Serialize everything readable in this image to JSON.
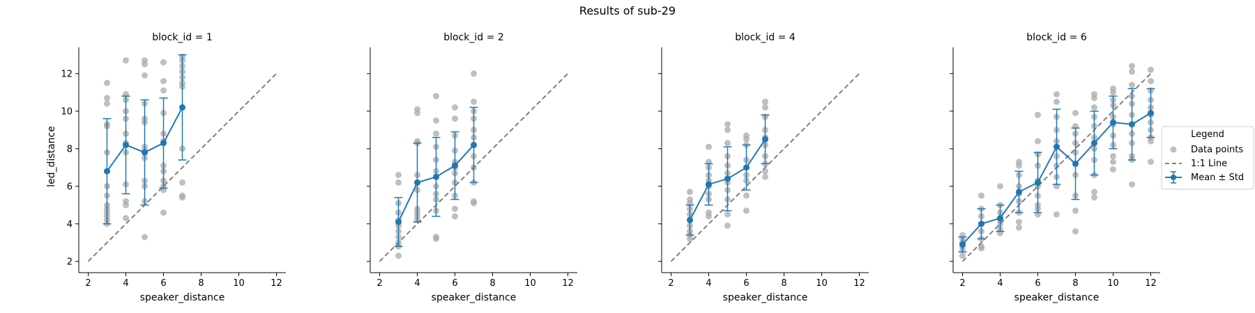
{
  "figure": {
    "title": "Results of sub-29",
    "xlabel": "speaker_distance",
    "ylabel": "led_distance"
  },
  "colors": {
    "points": "#aaaaaa",
    "mean": "#1f77b4",
    "identity": "#7f7f7f"
  },
  "legend": {
    "title": "Legend",
    "items": [
      "Data points",
      "1:1 Line",
      "Mean ± Std"
    ]
  },
  "chart_data": [
    {
      "type": "scatter",
      "title": "block_id = 1",
      "xlabel": "speaker_distance",
      "ylabel": "led_distance",
      "xlim": [
        1.5,
        12.5
      ],
      "ylim": [
        1.4,
        13.4
      ],
      "xticks": [
        2,
        4,
        6,
        8,
        10,
        12
      ],
      "yticks": [
        2,
        4,
        6,
        8,
        10,
        12
      ],
      "identity_line": [
        [
          2,
          2
        ],
        [
          12,
          12
        ]
      ],
      "mean_std": [
        {
          "x": 3,
          "mean": 6.8,
          "std": 2.8
        },
        {
          "x": 4,
          "mean": 8.2,
          "std": 2.6
        },
        {
          "x": 5,
          "mean": 7.8,
          "std": 2.8
        },
        {
          "x": 6,
          "mean": 8.3,
          "std": 2.4
        },
        {
          "x": 7,
          "mean": 10.2,
          "std": 2.8
        }
      ],
      "points": [
        [
          3,
          11.5
        ],
        [
          3,
          10.7
        ],
        [
          3,
          10.4
        ],
        [
          3,
          9.3
        ],
        [
          3,
          9.2
        ],
        [
          3,
          7.8
        ],
        [
          3,
          6.8
        ],
        [
          3,
          6.0
        ],
        [
          3,
          5.5
        ],
        [
          3,
          5.0
        ],
        [
          3,
          4.8
        ],
        [
          3,
          4.6
        ],
        [
          3,
          4.4
        ],
        [
          3,
          4.2
        ],
        [
          3,
          4.0
        ],
        [
          4,
          12.7
        ],
        [
          4,
          10.9
        ],
        [
          4,
          10.6
        ],
        [
          4,
          10.0
        ],
        [
          4,
          9.6
        ],
        [
          4,
          8.8
        ],
        [
          4,
          8.3
        ],
        [
          4,
          7.8
        ],
        [
          4,
          6.1
        ],
        [
          4,
          5.2
        ],
        [
          4,
          5.0
        ],
        [
          4,
          4.3
        ],
        [
          5,
          12.7
        ],
        [
          5,
          12.5
        ],
        [
          5,
          11.9
        ],
        [
          5,
          10.4
        ],
        [
          5,
          9.6
        ],
        [
          5,
          9.4
        ],
        [
          5,
          8.1
        ],
        [
          5,
          7.9
        ],
        [
          5,
          7.5
        ],
        [
          5,
          6.3
        ],
        [
          5,
          6.0
        ],
        [
          5,
          5.2
        ],
        [
          5,
          3.3
        ],
        [
          6,
          12.6
        ],
        [
          6,
          11.6
        ],
        [
          6,
          11.1
        ],
        [
          6,
          9.9
        ],
        [
          6,
          8.8
        ],
        [
          6,
          8.4
        ],
        [
          6,
          7.1
        ],
        [
          6,
          6.8
        ],
        [
          6,
          6.3
        ],
        [
          6,
          6.0
        ],
        [
          6,
          5.8
        ],
        [
          6,
          4.6
        ],
        [
          7,
          12.9
        ],
        [
          7,
          12.7
        ],
        [
          7,
          12.4
        ],
        [
          7,
          12.1
        ],
        [
          7,
          11.8
        ],
        [
          7,
          11.5
        ],
        [
          7,
          11.3
        ],
        [
          7,
          8.0
        ],
        [
          7,
          6.2
        ],
        [
          7,
          5.5
        ],
        [
          7,
          5.4
        ]
      ]
    },
    {
      "type": "scatter",
      "title": "block_id = 2",
      "xlabel": "speaker_distance",
      "ylabel": "",
      "xlim": [
        1.5,
        12.5
      ],
      "ylim": [
        1.4,
        13.4
      ],
      "xticks": [
        2,
        4,
        6,
        8,
        10,
        12
      ],
      "yticks": [
        2,
        4,
        6,
        8,
        10,
        12
      ],
      "identity_line": [
        [
          2,
          2
        ],
        [
          12,
          12
        ]
      ],
      "mean_std": [
        {
          "x": 3,
          "mean": 4.1,
          "std": 1.3
        },
        {
          "x": 4,
          "mean": 6.2,
          "std": 2.1
        },
        {
          "x": 5,
          "mean": 6.5,
          "std": 2.1
        },
        {
          "x": 6,
          "mean": 7.1,
          "std": 1.8
        },
        {
          "x": 7,
          "mean": 8.2,
          "std": 2.0
        }
      ],
      "points": [
        [
          3,
          6.6
        ],
        [
          3,
          6.2
        ],
        [
          3,
          5.1
        ],
        [
          3,
          4.6
        ],
        [
          3,
          4.2
        ],
        [
          3,
          3.9
        ],
        [
          3,
          3.6
        ],
        [
          3,
          3.3
        ],
        [
          3,
          3.0
        ],
        [
          3,
          2.8
        ],
        [
          3,
          2.3
        ],
        [
          4,
          10.1
        ],
        [
          4,
          9.9
        ],
        [
          4,
          8.4
        ],
        [
          4,
          8.3
        ],
        [
          4,
          6.6
        ],
        [
          4,
          6.2
        ],
        [
          4,
          5.8
        ],
        [
          4,
          4.8
        ],
        [
          4,
          4.6
        ],
        [
          4,
          4.4
        ],
        [
          4,
          4.2
        ],
        [
          5,
          10.8
        ],
        [
          5,
          9.5
        ],
        [
          5,
          8.8
        ],
        [
          5,
          8.1
        ],
        [
          5,
          7.4
        ],
        [
          5,
          6.8
        ],
        [
          5,
          6.0
        ],
        [
          5,
          5.6
        ],
        [
          5,
          5.3
        ],
        [
          5,
          4.7
        ],
        [
          5,
          3.3
        ],
        [
          5,
          3.2
        ],
        [
          6,
          10.2
        ],
        [
          6,
          9.6
        ],
        [
          6,
          8.7
        ],
        [
          6,
          7.9
        ],
        [
          6,
          7.3
        ],
        [
          6,
          7.0
        ],
        [
          6,
          6.7
        ],
        [
          6,
          6.2
        ],
        [
          6,
          5.5
        ],
        [
          6,
          4.8
        ],
        [
          6,
          4.4
        ],
        [
          7,
          12.0
        ],
        [
          7,
          10.5
        ],
        [
          7,
          10.0
        ],
        [
          7,
          9.6
        ],
        [
          7,
          9.0
        ],
        [
          7,
          8.6
        ],
        [
          7,
          8.2
        ],
        [
          7,
          7.6
        ],
        [
          7,
          7.0
        ],
        [
          7,
          6.2
        ],
        [
          7,
          5.2
        ],
        [
          7,
          5.1
        ]
      ]
    },
    {
      "type": "scatter",
      "title": "block_id = 4",
      "xlabel": "speaker_distance",
      "ylabel": "",
      "xlim": [
        1.5,
        12.5
      ],
      "ylim": [
        1.4,
        13.4
      ],
      "xticks": [
        2,
        4,
        6,
        8,
        10,
        12
      ],
      "yticks": [
        2,
        4,
        6,
        8,
        10,
        12
      ],
      "identity_line": [
        [
          2,
          2
        ],
        [
          12,
          12
        ]
      ],
      "mean_std": [
        {
          "x": 3,
          "mean": 4.2,
          "std": 0.8
        },
        {
          "x": 4,
          "mean": 6.1,
          "std": 1.1
        },
        {
          "x": 5,
          "mean": 6.4,
          "std": 1.7
        },
        {
          "x": 6,
          "mean": 7.0,
          "std": 1.2
        },
        {
          "x": 7,
          "mean": 8.5,
          "std": 1.3
        }
      ],
      "points": [
        [
          3,
          5.7
        ],
        [
          3,
          5.3
        ],
        [
          3,
          5.1
        ],
        [
          3,
          4.8
        ],
        [
          3,
          4.5
        ],
        [
          3,
          4.2
        ],
        [
          3,
          3.9
        ],
        [
          3,
          3.6
        ],
        [
          3,
          3.4
        ],
        [
          3,
          3.2
        ],
        [
          4,
          8.1
        ],
        [
          4,
          7.3
        ],
        [
          4,
          7.0
        ],
        [
          4,
          6.6
        ],
        [
          4,
          6.3
        ],
        [
          4,
          6.0
        ],
        [
          4,
          5.6
        ],
        [
          4,
          5.3
        ],
        [
          4,
          4.6
        ],
        [
          4,
          4.4
        ],
        [
          5,
          9.3
        ],
        [
          5,
          9.0
        ],
        [
          5,
          8.3
        ],
        [
          5,
          7.6
        ],
        [
          5,
          7.1
        ],
        [
          5,
          6.7
        ],
        [
          5,
          6.2
        ],
        [
          5,
          5.8
        ],
        [
          5,
          5.3
        ],
        [
          5,
          4.5
        ],
        [
          5,
          3.9
        ],
        [
          6,
          8.7
        ],
        [
          6,
          8.5
        ],
        [
          6,
          8.2
        ],
        [
          6,
          7.4
        ],
        [
          6,
          7.0
        ],
        [
          6,
          6.6
        ],
        [
          6,
          6.3
        ],
        [
          6,
          5.5
        ],
        [
          6,
          4.7
        ],
        [
          7,
          10.5
        ],
        [
          7,
          10.2
        ],
        [
          7,
          9.7
        ],
        [
          7,
          9.0
        ],
        [
          7,
          8.6
        ],
        [
          7,
          8.2
        ],
        [
          7,
          7.6
        ],
        [
          7,
          7.2
        ],
        [
          7,
          6.8
        ],
        [
          7,
          6.5
        ]
      ]
    },
    {
      "type": "scatter",
      "title": "block_id = 6",
      "xlabel": "speaker_distance",
      "ylabel": "",
      "xlim": [
        1.5,
        12.5
      ],
      "ylim": [
        1.4,
        13.4
      ],
      "xticks": [
        2,
        4,
        6,
        8,
        10,
        12
      ],
      "yticks": [
        2,
        4,
        6,
        8,
        10,
        12
      ],
      "identity_line": [
        [
          2,
          2
        ],
        [
          12,
          12
        ]
      ],
      "mean_std": [
        {
          "x": 2,
          "mean": 2.9,
          "std": 0.4
        },
        {
          "x": 3,
          "mean": 4.0,
          "std": 0.8
        },
        {
          "x": 4,
          "mean": 4.3,
          "std": 0.7
        },
        {
          "x": 5,
          "mean": 5.7,
          "std": 1.1
        },
        {
          "x": 6,
          "mean": 6.2,
          "std": 1.6
        },
        {
          "x": 7,
          "mean": 8.1,
          "std": 2.0
        },
        {
          "x": 8,
          "mean": 7.2,
          "std": 1.9
        },
        {
          "x": 9,
          "mean": 8.3,
          "std": 1.7
        },
        {
          "x": 10,
          "mean": 9.4,
          "std": 1.4
        },
        {
          "x": 11,
          "mean": 9.3,
          "std": 1.9
        },
        {
          "x": 12,
          "mean": 9.9,
          "std": 1.3
        }
      ],
      "points": [
        [
          2,
          3.4
        ],
        [
          2,
          3.2
        ],
        [
          2,
          3.0
        ],
        [
          2,
          2.8
        ],
        [
          2,
          2.6
        ],
        [
          2,
          2.3
        ],
        [
          3,
          5.5
        ],
        [
          3,
          4.8
        ],
        [
          3,
          4.4
        ],
        [
          3,
          4.0
        ],
        [
          3,
          3.6
        ],
        [
          3,
          3.2
        ],
        [
          3,
          2.8
        ],
        [
          3,
          2.7
        ],
        [
          4,
          6.0
        ],
        [
          4,
          5.0
        ],
        [
          4,
          4.6
        ],
        [
          4,
          4.2
        ],
        [
          4,
          4.0
        ],
        [
          4,
          3.7
        ],
        [
          4,
          3.5
        ],
        [
          5,
          7.3
        ],
        [
          5,
          7.1
        ],
        [
          5,
          6.6
        ],
        [
          5,
          6.0
        ],
        [
          5,
          5.6
        ],
        [
          5,
          5.2
        ],
        [
          5,
          4.6
        ],
        [
          5,
          4.1
        ],
        [
          5,
          3.8
        ],
        [
          6,
          9.8
        ],
        [
          6,
          8.4
        ],
        [
          6,
          7.7
        ],
        [
          6,
          7.1
        ],
        [
          6,
          6.3
        ],
        [
          6,
          6.0
        ],
        [
          6,
          5.5
        ],
        [
          6,
          5.0
        ],
        [
          6,
          4.8
        ],
        [
          6,
          4.5
        ],
        [
          7,
          10.9
        ],
        [
          7,
          10.5
        ],
        [
          7,
          9.7
        ],
        [
          7,
          9.0
        ],
        [
          7,
          8.4
        ],
        [
          7,
          7.6
        ],
        [
          7,
          7.1
        ],
        [
          7,
          6.5
        ],
        [
          7,
          6.0
        ],
        [
          7,
          4.5
        ],
        [
          8,
          9.9
        ],
        [
          8,
          9.2
        ],
        [
          8,
          8.8
        ],
        [
          8,
          8.3
        ],
        [
          8,
          7.8
        ],
        [
          8,
          7.2
        ],
        [
          8,
          6.6
        ],
        [
          8,
          5.5
        ],
        [
          8,
          4.7
        ],
        [
          8,
          3.6
        ],
        [
          9,
          10.9
        ],
        [
          9,
          10.7
        ],
        [
          9,
          10.2
        ],
        [
          9,
          9.7
        ],
        [
          9,
          9.2
        ],
        [
          9,
          8.6
        ],
        [
          9,
          8.0
        ],
        [
          9,
          7.4
        ],
        [
          9,
          6.6
        ],
        [
          9,
          5.7
        ],
        [
          9,
          5.4
        ],
        [
          10,
          11.2
        ],
        [
          10,
          11.0
        ],
        [
          10,
          10.6
        ],
        [
          10,
          10.3
        ],
        [
          10,
          9.7
        ],
        [
          10,
          9.3
        ],
        [
          10,
          8.7
        ],
        [
          10,
          8.2
        ],
        [
          10,
          7.6
        ],
        [
          10,
          7.3
        ],
        [
          10,
          6.9
        ],
        [
          11,
          12.4
        ],
        [
          11,
          12.1
        ],
        [
          11,
          11.4
        ],
        [
          11,
          10.8
        ],
        [
          11,
          10.4
        ],
        [
          11,
          9.8
        ],
        [
          11,
          9.3
        ],
        [
          11,
          8.8
        ],
        [
          11,
          8.3
        ],
        [
          11,
          7.6
        ],
        [
          11,
          7.4
        ],
        [
          11,
          6.1
        ],
        [
          12,
          12.2
        ],
        [
          12,
          11.6
        ],
        [
          12,
          11.1
        ],
        [
          12,
          10.6
        ],
        [
          12,
          10.2
        ],
        [
          12,
          9.8
        ],
        [
          12,
          9.4
        ],
        [
          12,
          9.0
        ],
        [
          12,
          8.6
        ],
        [
          12,
          8.4
        ],
        [
          12,
          7.3
        ]
      ]
    }
  ]
}
